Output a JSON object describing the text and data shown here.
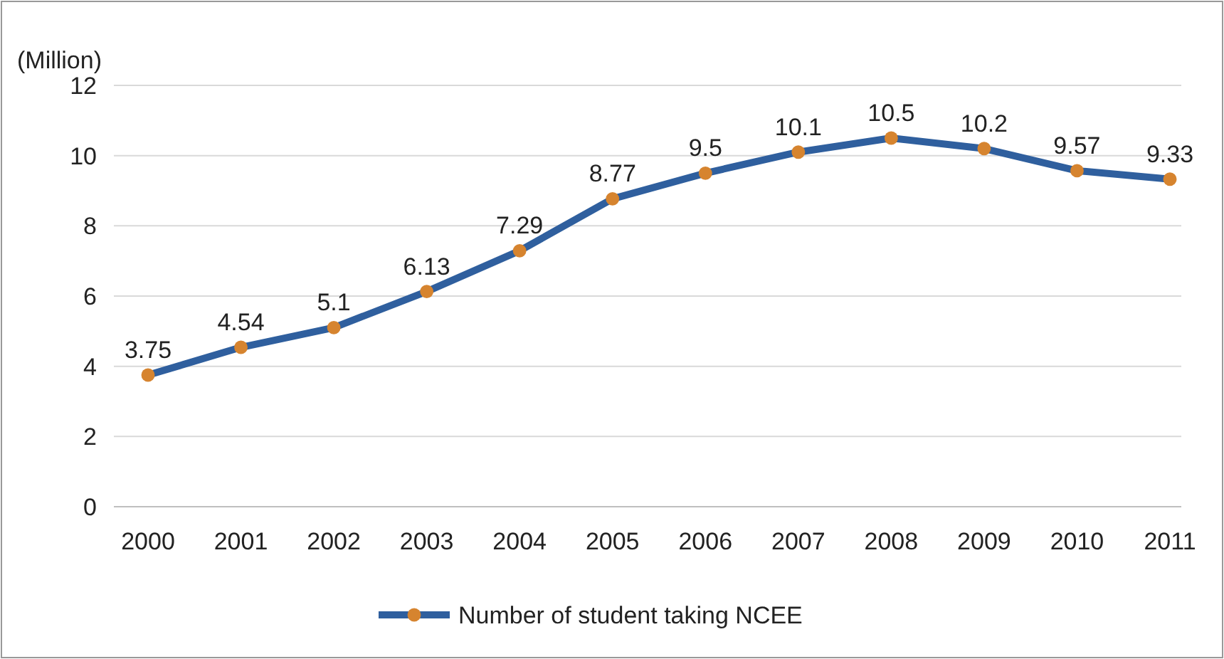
{
  "chart_data": {
    "type": "line",
    "ylabel": "(Million)",
    "categories": [
      "2000",
      "2001",
      "2002",
      "2003",
      "2004",
      "2005",
      "2006",
      "2007",
      "2008",
      "2009",
      "2010",
      "2011"
    ],
    "series": [
      {
        "name": "Number of student taking NCEE",
        "color": "#2f5f9e",
        "values": [
          3.75,
          4.54,
          5.1,
          6.13,
          7.29,
          8.77,
          9.5,
          10.1,
          10.5,
          10.2,
          9.57,
          9.33
        ]
      }
    ],
    "ylim": [
      0,
      12
    ],
    "yticks": [
      0,
      2,
      4,
      6,
      8,
      10,
      12
    ],
    "grid": "y",
    "legend": "bottom",
    "marker": "circle",
    "line_style": "solid",
    "data_labels": true
  }
}
